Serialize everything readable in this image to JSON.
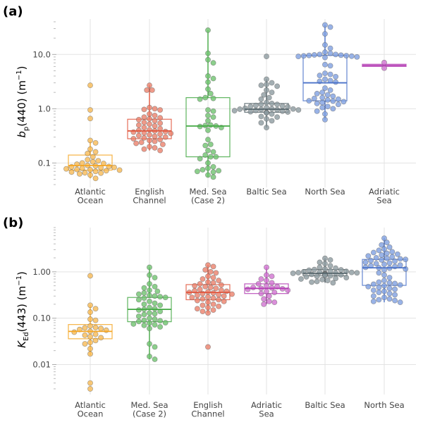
{
  "chart_data": [
    {
      "type": "boxplot-swarm",
      "panel_label": "(a)",
      "ylabel": {
        "var": "b",
        "sub": "p",
        "rest": "(440) (m",
        "sup": "−1",
        "close": ")"
      },
      "yscale": "log",
      "ylim": [
        0.04,
        45
      ],
      "yticks": [
        0.1,
        1.0,
        10.0
      ],
      "ytick_labels": [
        "0.1",
        "1.0",
        "10.0"
      ],
      "grid": true,
      "categories": [
        {
          "name": [
            "Atlantic",
            "Ocean"
          ],
          "color": "#f5a623",
          "fill": "#f7b851",
          "box": {
            "q1": 0.074,
            "median": 0.09,
            "q3": 0.14,
            "whisker_low": 0.052,
            "whisker_high": 0.25
          },
          "points": [
            2.7,
            0.95,
            0.66,
            0.26,
            0.235,
            0.18,
            0.16,
            0.15,
            0.13,
            0.115,
            0.11,
            0.105,
            0.1,
            0.098,
            0.095,
            0.09,
            0.088,
            0.086,
            0.085,
            0.083,
            0.082,
            0.08,
            0.078,
            0.076,
            0.075,
            0.074,
            0.072,
            0.07,
            0.068,
            0.066,
            0.065,
            0.063,
            0.06,
            0.052
          ]
        },
        {
          "name": [
            "English",
            "Channel"
          ],
          "color": "#e0553c",
          "fill": "#eb7e68",
          "box": {
            "q1": 0.28,
            "median": 0.39,
            "q3": 0.64,
            "whisker_low": 0.17,
            "whisker_high": 2.7
          },
          "points": [
            2.7,
            2.2,
            2.2,
            1.05,
            1.0,
            0.97,
            0.95,
            0.8,
            0.75,
            0.7,
            0.68,
            0.65,
            0.63,
            0.6,
            0.56,
            0.54,
            0.52,
            0.5,
            0.48,
            0.45,
            0.43,
            0.41,
            0.4,
            0.39,
            0.38,
            0.37,
            0.36,
            0.35,
            0.34,
            0.33,
            0.32,
            0.31,
            0.3,
            0.29,
            0.28,
            0.27,
            0.26,
            0.25,
            0.24,
            0.23,
            0.22,
            0.2,
            0.19,
            0.18,
            0.17
          ]
        },
        {
          "name": [
            "Med. Sea",
            "(Case 2)"
          ],
          "color": "#43a843",
          "fill": "#6cc16c",
          "box": {
            "q1": 0.13,
            "median": 0.48,
            "q3": 1.6,
            "whisker_low": 0.055,
            "whisker_high": 28
          },
          "points": [
            28,
            10.5,
            8.0,
            7.0,
            4.0,
            3.6,
            3.1,
            2.3,
            1.9,
            1.6,
            1.55,
            1.5,
            0.95,
            0.9,
            0.75,
            0.7,
            0.6,
            0.5,
            0.49,
            0.48,
            0.47,
            0.45,
            0.4,
            0.27,
            0.22,
            0.21,
            0.17,
            0.16,
            0.14,
            0.13,
            0.13,
            0.12,
            0.1,
            0.085,
            0.08,
            0.075,
            0.072,
            0.07,
            0.068,
            0.06,
            0.055
          ]
        },
        {
          "name": [
            "Baltic Sea"
          ],
          "color": "#55656b",
          "fill": "#8a999e",
          "box": {
            "q1": 0.86,
            "median": 0.98,
            "q3": 1.25,
            "whisker_low": 0.45,
            "whisker_high": 3.5
          },
          "points": [
            9.2,
            3.5,
            3.0,
            2.8,
            2.7,
            2.6,
            2.2,
            2.0,
            1.8,
            1.6,
            1.5,
            1.3,
            1.25,
            1.2,
            1.2,
            1.15,
            1.12,
            1.1,
            1.08,
            1.05,
            1.02,
            1.0,
            0.99,
            0.98,
            0.97,
            0.96,
            0.95,
            0.93,
            0.92,
            0.9,
            0.88,
            0.87,
            0.86,
            0.85,
            0.84,
            0.8,
            0.72,
            0.7,
            0.65,
            0.6,
            0.55,
            0.45
          ]
        },
        {
          "name": [
            "North Sea"
          ],
          "color": "#4a72c9",
          "fill": "#7c9ee0",
          "box": {
            "q1": 1.4,
            "median": 3.0,
            "q3": 9.6,
            "whisker_low": 0.63,
            "whisker_high": 35
          },
          "points": [
            35,
            32,
            24,
            15,
            13,
            11,
            10.5,
            10,
            10,
            9.8,
            9.7,
            9.6,
            9.5,
            9.4,
            9.3,
            9.2,
            9.0,
            8.8,
            6.5,
            6.2,
            4.5,
            4.3,
            4.1,
            3.9,
            3.5,
            3.3,
            3.2,
            3.1,
            2.4,
            2.2,
            2.0,
            1.9,
            1.8,
            1.7,
            1.6,
            1.55,
            1.5,
            1.45,
            1.4,
            1.38,
            1.35,
            1.3,
            1.25,
            1.2,
            1.1,
            1.05,
            1.0,
            0.9,
            0.8,
            0.63
          ]
        },
        {
          "name": [
            "Adriatic",
            "Sea"
          ],
          "color": "#b43db4",
          "fill": "#cf6fcf",
          "box": {
            "q1": 6.0,
            "median": 6.3,
            "q3": 6.6,
            "whisker_low": 6.0,
            "whisker_high": 6.6
          },
          "points": [
            7.1,
            5.6
          ]
        }
      ]
    },
    {
      "type": "boxplot-swarm",
      "panel_label": "(b)",
      "ylabel": {
        "var": "K",
        "sub": "Ed",
        "rest": "(443) (m",
        "sup": "−1",
        "close": ")"
      },
      "yscale": "log",
      "ylim": [
        0.0026,
        9
      ],
      "yticks": [
        0.01,
        0.1,
        1.0
      ],
      "ytick_labels": [
        "0.01",
        "0.10",
        "1.00"
      ],
      "grid": true,
      "categories": [
        {
          "name": [
            "Atlantic",
            "Ocean"
          ],
          "color": "#f5a623",
          "fill": "#f7b851",
          "box": {
            "q1": 0.036,
            "median": 0.052,
            "q3": 0.073,
            "whisker_low": 0.016,
            "whisker_high": 0.19
          },
          "points": [
            0.82,
            0.19,
            0.16,
            0.135,
            0.095,
            0.09,
            0.068,
            0.063,
            0.062,
            0.06,
            0.057,
            0.055,
            0.052,
            0.05,
            0.045,
            0.043,
            0.04,
            0.038,
            0.033,
            0.03,
            0.028,
            0.022,
            0.017,
            0.004,
            0.003
          ]
        },
        {
          "name": [
            "Med. Sea",
            "(Case 2)"
          ],
          "color": "#43a843",
          "fill": "#6cc16c",
          "box": {
            "q1": 0.084,
            "median": 0.155,
            "q3": 0.28,
            "whisker_low": 0.013,
            "whisker_high": 1.25
          },
          "points": [
            1.25,
            0.85,
            0.75,
            0.55,
            0.48,
            0.45,
            0.4,
            0.38,
            0.35,
            0.33,
            0.31,
            0.3,
            0.29,
            0.28,
            0.27,
            0.25,
            0.23,
            0.21,
            0.2,
            0.19,
            0.17,
            0.16,
            0.155,
            0.15,
            0.14,
            0.13,
            0.125,
            0.12,
            0.11,
            0.1,
            0.095,
            0.09,
            0.088,
            0.085,
            0.08,
            0.078,
            0.075,
            0.072,
            0.07,
            0.065,
            0.06,
            0.028,
            0.024,
            0.015,
            0.013
          ]
        },
        {
          "name": [
            "English",
            "Channel"
          ],
          "color": "#e0553c",
          "fill": "#eb7e68",
          "box": {
            "q1": 0.25,
            "median": 0.36,
            "q3": 0.53,
            "whisker_low": 0.13,
            "whisker_high": 1.4
          },
          "points": [
            1.4,
            1.3,
            1.1,
            1.0,
            0.95,
            0.8,
            0.75,
            0.7,
            0.65,
            0.6,
            0.58,
            0.55,
            0.52,
            0.5,
            0.48,
            0.46,
            0.44,
            0.42,
            0.4,
            0.39,
            0.38,
            0.37,
            0.36,
            0.35,
            0.34,
            0.33,
            0.32,
            0.31,
            0.3,
            0.29,
            0.28,
            0.27,
            0.26,
            0.25,
            0.24,
            0.23,
            0.22,
            0.2,
            0.19,
            0.18,
            0.17,
            0.16,
            0.15,
            0.14,
            0.13,
            0.024
          ]
        },
        {
          "name": [
            "Adriatic",
            "Sea"
          ],
          "color": "#b43db4",
          "fill": "#cf6fcf",
          "box": {
            "q1": 0.34,
            "median": 0.44,
            "q3": 0.55,
            "whisker_low": 0.2,
            "whisker_high": 1.25
          },
          "points": [
            1.25,
            0.85,
            0.8,
            0.7,
            0.65,
            0.58,
            0.55,
            0.5,
            0.48,
            0.46,
            0.45,
            0.44,
            0.43,
            0.42,
            0.4,
            0.38,
            0.36,
            0.34,
            0.3,
            0.26,
            0.23,
            0.22,
            0.2
          ]
        },
        {
          "name": [
            "Baltic Sea"
          ],
          "color": "#55656b",
          "fill": "#8a999e",
          "box": {
            "q1": 0.82,
            "median": 0.93,
            "q3": 1.12,
            "whisker_low": 0.58,
            "whisker_high": 1.95
          },
          "points": [
            1.95,
            1.8,
            1.6,
            1.5,
            1.35,
            1.25,
            1.2,
            1.15,
            1.12,
            1.1,
            1.08,
            1.05,
            1.02,
            1.0,
            0.98,
            0.97,
            0.96,
            0.95,
            0.94,
            0.93,
            0.92,
            0.91,
            0.9,
            0.89,
            0.88,
            0.87,
            0.86,
            0.85,
            0.84,
            0.82,
            0.8,
            0.78,
            0.75,
            0.72,
            0.7,
            0.68,
            0.65,
            0.62,
            0.6,
            0.58
          ]
        },
        {
          "name": [
            "North Sea"
          ],
          "color": "#4a72c9",
          "fill": "#7c9ee0",
          "box": {
            "q1": 0.51,
            "median": 1.22,
            "q3": 1.85,
            "whisker_low": 0.22,
            "whisker_high": 5.3
          },
          "points": [
            5.3,
            4.3,
            3.8,
            3.4,
            3.1,
            2.9,
            2.7,
            2.6,
            2.5,
            2.4,
            2.3,
            2.2,
            2.1,
            2.0,
            1.95,
            1.9,
            1.85,
            1.8,
            1.75,
            1.7,
            1.6,
            1.55,
            1.5,
            1.45,
            1.4,
            1.35,
            1.3,
            1.25,
            1.22,
            1.2,
            1.15,
            1.1,
            0.95,
            0.85,
            0.75,
            0.65,
            0.6,
            0.58,
            0.56,
            0.54,
            0.52,
            0.5,
            0.48,
            0.46,
            0.44,
            0.42,
            0.4,
            0.38,
            0.36,
            0.34,
            0.32,
            0.3,
            0.28,
            0.26,
            0.25,
            0.24,
            0.23,
            0.22
          ]
        }
      ]
    }
  ]
}
